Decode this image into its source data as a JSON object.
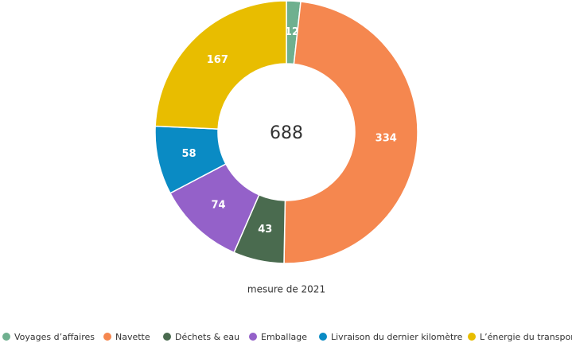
{
  "chart_data": {
    "type": "donut",
    "total": 688,
    "subtitle": "mesure de 2021",
    "categories": [
      "Voyages d’affaires",
      "Navette",
      "Déchets & eau",
      "Emballage",
      "Livraison du dernier kilomètre",
      "L’énergie du transport"
    ],
    "values": [
      12,
      334,
      43,
      74,
      58,
      167
    ],
    "colors": [
      "#6fb08f",
      "#f5874f",
      "#4a6b4f",
      "#9461c9",
      "#0a8bc4",
      "#e8bd00"
    ]
  }
}
